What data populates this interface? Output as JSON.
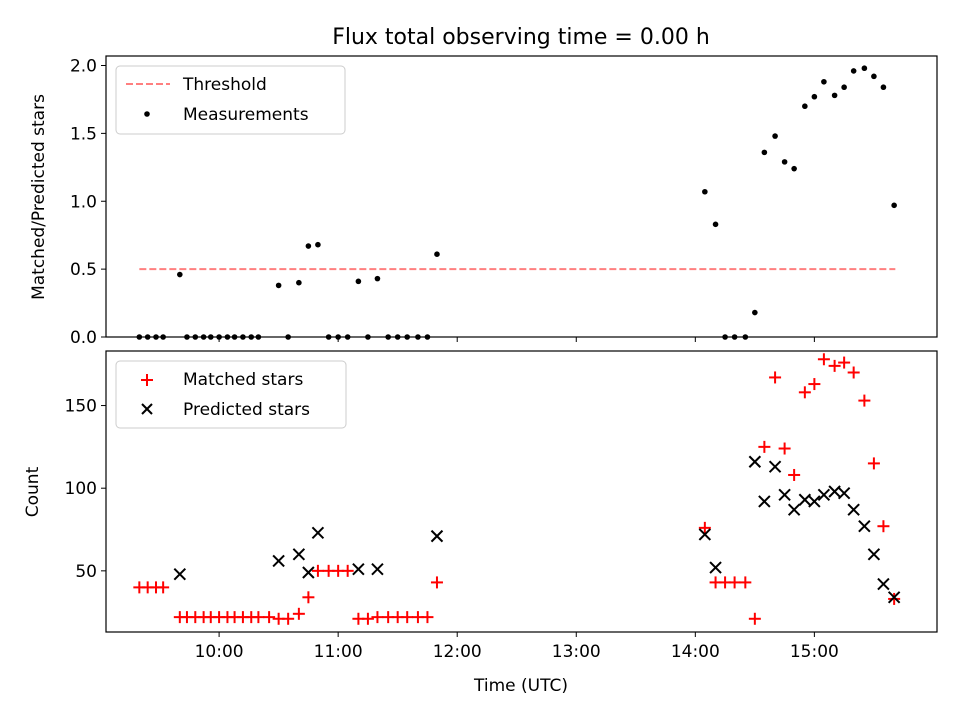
{
  "title": "Flux total observing time = 0.00 h",
  "colors": {
    "threshold": "#ff7f7f",
    "measurements": "#000000",
    "matched": "#ff0000",
    "predicted": "#000000"
  },
  "chart_data": [
    {
      "type": "scatter",
      "ylabel": "Matched/Predicted stars",
      "xlim": [
        9.05,
        16.03
      ],
      "ylim": [
        0.0,
        2.07
      ],
      "yticks": [
        0.0,
        0.5,
        1.0,
        1.5,
        2.0
      ],
      "ytick_labels": [
        "0.0",
        "0.5",
        "1.0",
        "1.5",
        "2.0"
      ],
      "grid": false,
      "legend_position": "top-left",
      "threshold": {
        "name": "Threshold",
        "y": 0.5,
        "x_range": [
          9.33,
          15.68
        ]
      },
      "series": [
        {
          "name": "Measurements",
          "points": [
            [
              9.33,
              0.0
            ],
            [
              9.4,
              0.0
            ],
            [
              9.47,
              0.0
            ],
            [
              9.53,
              0.0
            ],
            [
              9.67,
              0.46
            ],
            [
              9.73,
              0.0
            ],
            [
              9.8,
              0.0
            ],
            [
              9.87,
              0.0
            ],
            [
              9.93,
              0.0
            ],
            [
              10.0,
              0.0
            ],
            [
              10.07,
              0.0
            ],
            [
              10.13,
              0.0
            ],
            [
              10.2,
              0.0
            ],
            [
              10.27,
              0.0
            ],
            [
              10.33,
              0.0
            ],
            [
              10.5,
              0.38
            ],
            [
              10.58,
              0.0
            ],
            [
              10.67,
              0.4
            ],
            [
              10.75,
              0.67
            ],
            [
              10.83,
              0.68
            ],
            [
              10.92,
              0.0
            ],
            [
              11.0,
              0.0
            ],
            [
              11.08,
              0.0
            ],
            [
              11.17,
              0.41
            ],
            [
              11.25,
              0.0
            ],
            [
              11.33,
              0.43
            ],
            [
              11.42,
              0.0
            ],
            [
              11.5,
              0.0
            ],
            [
              11.58,
              0.0
            ],
            [
              11.67,
              0.0
            ],
            [
              11.75,
              0.0
            ],
            [
              11.83,
              0.61
            ],
            [
              14.08,
              1.07
            ],
            [
              14.17,
              0.83
            ],
            [
              14.25,
              0.0
            ],
            [
              14.33,
              0.0
            ],
            [
              14.42,
              0.0
            ],
            [
              14.5,
              0.18
            ],
            [
              14.58,
              1.36
            ],
            [
              14.67,
              1.48
            ],
            [
              14.75,
              1.29
            ],
            [
              14.83,
              1.24
            ],
            [
              14.92,
              1.7
            ],
            [
              15.0,
              1.77
            ],
            [
              15.08,
              1.88
            ],
            [
              15.17,
              1.78
            ],
            [
              15.25,
              1.84
            ],
            [
              15.33,
              1.96
            ],
            [
              15.42,
              1.98
            ],
            [
              15.5,
              1.92
            ],
            [
              15.58,
              1.84
            ],
            [
              15.67,
              0.97
            ]
          ]
        }
      ]
    },
    {
      "type": "scatter",
      "xlabel": "Time (UTC)",
      "ylabel": "Count",
      "xlim": [
        9.05,
        16.03
      ],
      "ylim": [
        13,
        183
      ],
      "xticks": [
        10,
        11,
        12,
        13,
        14,
        15
      ],
      "xtick_labels": [
        "10:00",
        "11:00",
        "12:00",
        "13:00",
        "14:00",
        "15:00"
      ],
      "yticks": [
        50,
        100,
        150
      ],
      "ytick_labels": [
        "50",
        "100",
        "150"
      ],
      "grid": false,
      "legend_position": "top-left",
      "series": [
        {
          "name": "Matched stars",
          "marker": "plus",
          "points": [
            [
              9.33,
              40
            ],
            [
              9.4,
              40
            ],
            [
              9.47,
              40
            ],
            [
              9.53,
              40
            ],
            [
              9.67,
              22
            ],
            [
              9.73,
              22
            ],
            [
              9.8,
              22
            ],
            [
              9.87,
              22
            ],
            [
              9.93,
              22
            ],
            [
              10.0,
              22
            ],
            [
              10.07,
              22
            ],
            [
              10.13,
              22
            ],
            [
              10.2,
              22
            ],
            [
              10.27,
              22
            ],
            [
              10.33,
              22
            ],
            [
              10.42,
              22
            ],
            [
              10.5,
              21
            ],
            [
              10.58,
              21
            ],
            [
              10.67,
              24
            ],
            [
              10.75,
              34
            ],
            [
              10.83,
              50
            ],
            [
              10.92,
              50
            ],
            [
              11.0,
              50
            ],
            [
              11.08,
              50
            ],
            [
              11.17,
              21
            ],
            [
              11.25,
              21
            ],
            [
              11.33,
              22
            ],
            [
              11.42,
              22
            ],
            [
              11.5,
              22
            ],
            [
              11.58,
              22
            ],
            [
              11.67,
              22
            ],
            [
              11.75,
              22
            ],
            [
              11.83,
              43
            ],
            [
              14.08,
              76
            ],
            [
              14.17,
              43
            ],
            [
              14.25,
              43
            ],
            [
              14.33,
              43
            ],
            [
              14.42,
              43
            ],
            [
              14.5,
              21
            ],
            [
              14.58,
              125
            ],
            [
              14.67,
              167
            ],
            [
              14.75,
              124
            ],
            [
              14.83,
              108
            ],
            [
              14.92,
              158
            ],
            [
              15.0,
              163
            ],
            [
              15.08,
              178
            ],
            [
              15.17,
              174
            ],
            [
              15.25,
              176
            ],
            [
              15.33,
              170
            ],
            [
              15.42,
              153
            ],
            [
              15.5,
              115
            ],
            [
              15.58,
              77
            ],
            [
              15.67,
              33
            ]
          ]
        },
        {
          "name": "Predicted stars",
          "marker": "x",
          "points": [
            [
              9.67,
              48
            ],
            [
              10.5,
              56
            ],
            [
              10.67,
              60
            ],
            [
              10.75,
              49
            ],
            [
              10.83,
              73
            ],
            [
              11.17,
              51
            ],
            [
              11.33,
              51
            ],
            [
              11.83,
              71
            ],
            [
              14.08,
              72
            ],
            [
              14.17,
              52
            ],
            [
              14.5,
              116
            ],
            [
              14.58,
              92
            ],
            [
              14.67,
              113
            ],
            [
              14.75,
              96
            ],
            [
              14.83,
              87
            ],
            [
              14.92,
              93
            ],
            [
              15.0,
              92
            ],
            [
              15.08,
              96
            ],
            [
              15.17,
              98
            ],
            [
              15.25,
              97
            ],
            [
              15.33,
              87
            ],
            [
              15.42,
              77
            ],
            [
              15.5,
              60
            ],
            [
              15.58,
              42
            ],
            [
              15.67,
              34
            ]
          ]
        }
      ]
    }
  ]
}
